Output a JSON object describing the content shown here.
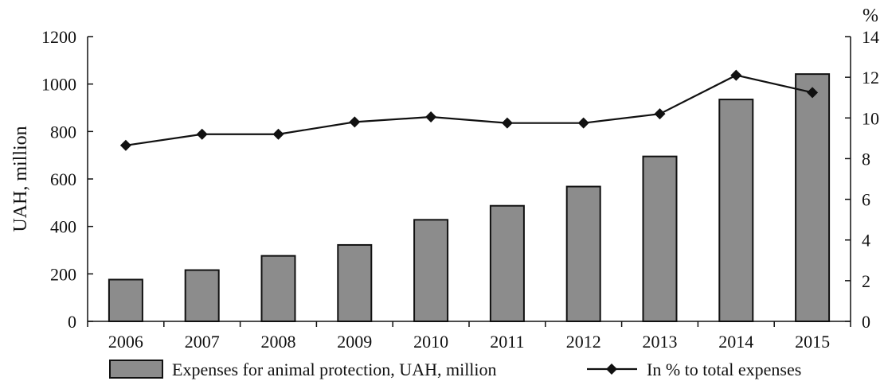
{
  "chart_data": {
    "type": "bar",
    "categories": [
      "2006",
      "2007",
      "2008",
      "2009",
      "2010",
      "2011",
      "2012",
      "2013",
      "2014",
      "2015"
    ],
    "series": [
      {
        "name": "Expenses for animal protection, UAH, million",
        "type": "bar",
        "axis": "left",
        "values": [
          176,
          216,
          276,
          322,
          428,
          487,
          568,
          695,
          935,
          1042
        ],
        "color": "#8c8c8c"
      },
      {
        "name": "In % to total expenses",
        "type": "line",
        "axis": "right",
        "values": [
          8.65,
          9.2,
          9.2,
          9.8,
          10.05,
          9.75,
          9.75,
          10.2,
          12.1,
          11.25
        ],
        "color": "#111111",
        "marker": "diamond"
      }
    ],
    "ylabel": "UAH, million",
    "ylim": [
      0,
      1200
    ],
    "yticks": [
      "0",
      "200",
      "400",
      "600",
      "800",
      "1000",
      "1200"
    ],
    "y2label": "%",
    "y2lim": [
      0,
      14
    ],
    "y2ticks": [
      "0",
      "2",
      "4",
      "6",
      "8",
      "10",
      "12",
      "14"
    ],
    "grid": false,
    "legend_position": "bottom"
  }
}
